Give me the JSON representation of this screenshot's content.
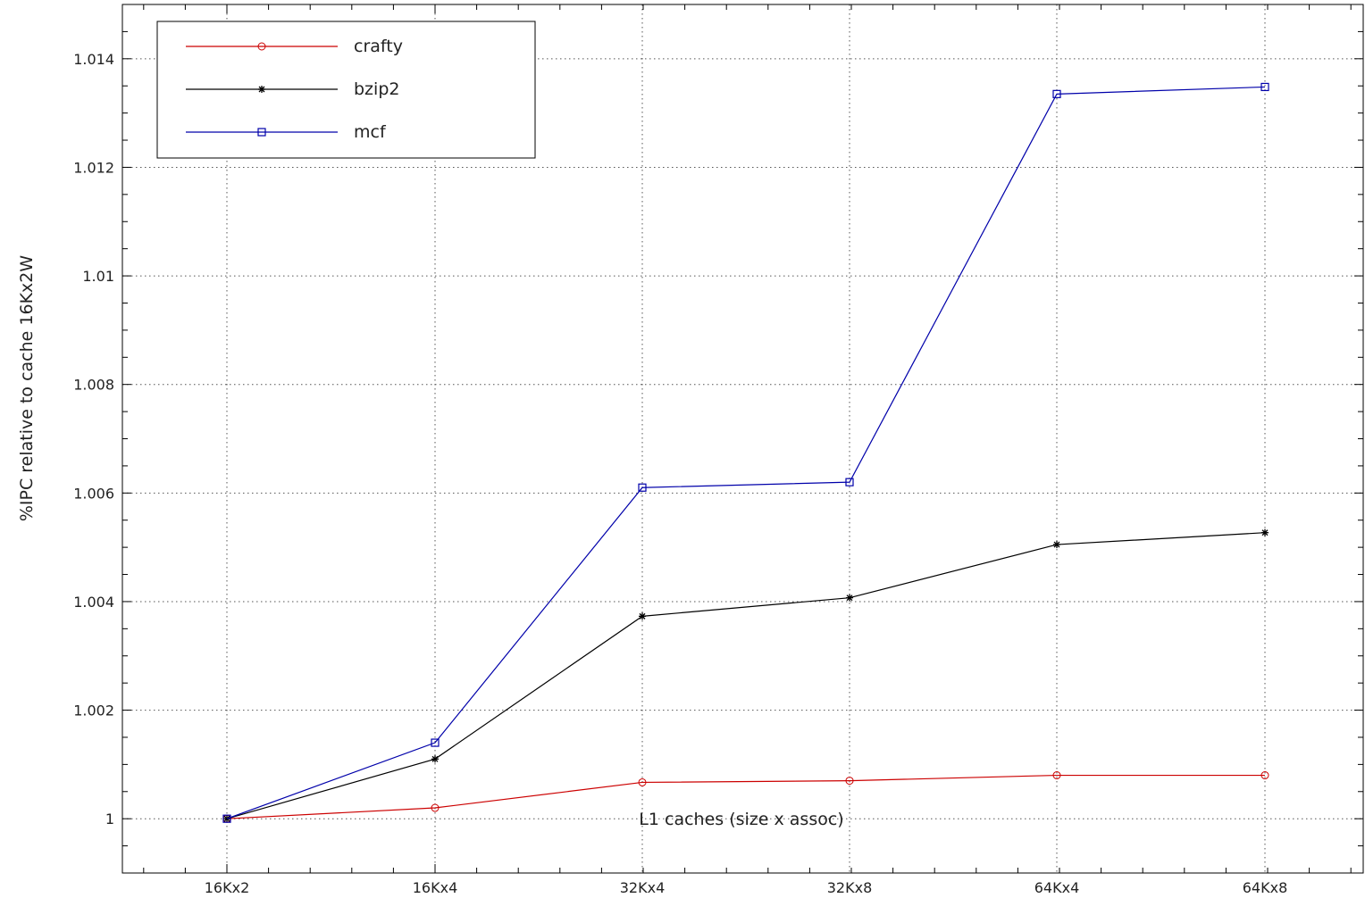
{
  "chart_data": {
    "type": "line",
    "title": "",
    "xlabel": "L1 caches (size x assoc)",
    "ylabel": "%IPC relative to cache 16Kx2W",
    "categories": [
      "16Kx2",
      "16Kx4",
      "32Kx4",
      "32Kx8",
      "64Kx4",
      "64Kx8"
    ],
    "ylim": [
      0.999,
      1.015
    ],
    "yticks": [
      "1",
      "1.002",
      "1.004",
      "1.006",
      "1.008",
      "1.01",
      "1.012",
      "1.014"
    ],
    "ytick_values": [
      1.0,
      1.002,
      1.004,
      1.006,
      1.008,
      1.01,
      1.012,
      1.014
    ],
    "grid": true,
    "legend_position": "top-left",
    "series": [
      {
        "name": "crafty",
        "color": "#cc0000",
        "marker": "circle",
        "values": [
          1.0,
          1.0002,
          1.00067,
          1.0007,
          1.0008,
          1.0008
        ]
      },
      {
        "name": "bzip2",
        "color": "#000000",
        "marker": "asterisk",
        "values": [
          1.0,
          1.0011,
          1.00373,
          1.00407,
          1.00505,
          1.00527
        ]
      },
      {
        "name": "mcf",
        "color": "#0000aa",
        "marker": "square",
        "values": [
          1.0,
          1.0014,
          1.0061,
          1.0062,
          1.01335,
          1.01348
        ]
      }
    ]
  }
}
